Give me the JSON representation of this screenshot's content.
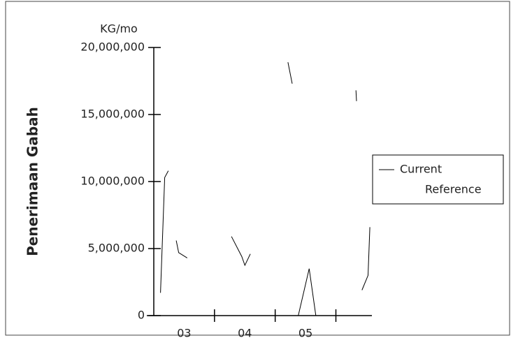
{
  "chart_data": {
    "type": "line",
    "y_label": "Penerimaan Gabah",
    "y_unit": "KG/mo",
    "x": [
      2.61,
      2.68,
      2.74,
      null,
      2.87,
      2.91,
      3.05,
      null,
      3.78,
      3.95,
      4.0,
      4.09,
      null,
      4.71,
      4.78,
      null,
      4.88,
      5.06,
      5.17,
      null,
      5.83,
      5.84,
      null,
      5.93,
      6.03,
      6.06
    ],
    "series": [
      {
        "name": "Current",
        "color": "#000000",
        "values": [
          1700000,
          10300000,
          10800000,
          null,
          5600000,
          4700000,
          4300000,
          null,
          5900000,
          4400000,
          3750000,
          4600000,
          null,
          18900000,
          17300000,
          null,
          0,
          3500000,
          0,
          null,
          16800000,
          16000000,
          null,
          1900000,
          3000000,
          6600000
        ]
      },
      {
        "name": "Reference",
        "color": "#000000",
        "values": [
          null,
          null,
          null,
          null,
          null,
          null,
          null,
          null,
          null,
          null,
          null,
          null,
          null,
          null,
          null,
          null,
          null,
          null,
          null,
          null,
          null,
          null,
          null,
          null,
          null,
          null
        ]
      }
    ],
    "xlim": [
      2.5,
      6.07
    ],
    "xticks": [
      {
        "value": 3,
        "label": "03"
      },
      {
        "value": 4,
        "label": "04"
      },
      {
        "value": 5,
        "label": "05"
      }
    ],
    "xminorticks": [
      3.5,
      4.5,
      5.5
    ],
    "ylim": [
      0,
      20000000
    ],
    "yticks": [
      0,
      {
        "value": 5000000,
        "label": "5,000,000"
      },
      {
        "value": 10000000,
        "label": "10,000,000"
      },
      {
        "value": 15000000,
        "label": "15,000,000"
      },
      {
        "value": 20000000,
        "label": "20,000,000"
      }
    ],
    "legend": "right"
  }
}
